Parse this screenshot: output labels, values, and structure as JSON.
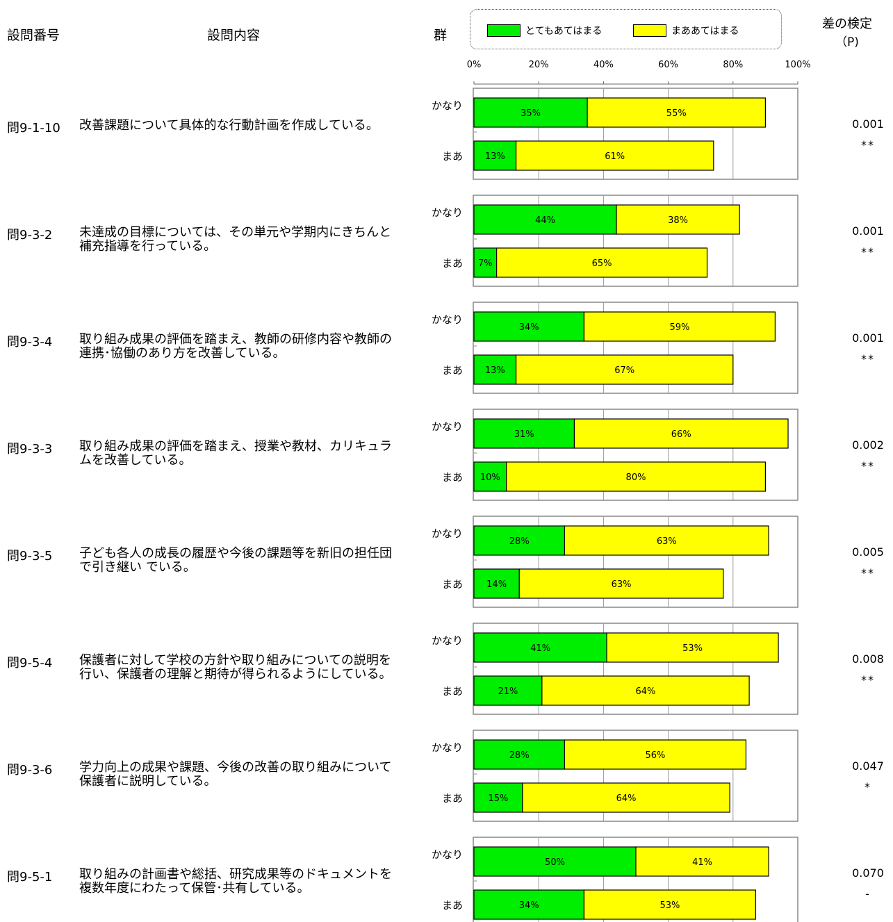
{
  "header": {
    "question_no": "設問番号",
    "question_content": "設問内容",
    "group": "群",
    "test": "差の検定",
    "test_unit": "（P)"
  },
  "legend": [
    {
      "name": "とてもあてはまる",
      "color": "#00ee00"
    },
    {
      "name": "まああてはまる",
      "color": "#ffff00"
    }
  ],
  "colors": {
    "series1": "#00ee00",
    "series2": "#ffff00",
    "grid": "#999999"
  },
  "chart_data": {
    "type": "bar",
    "orientation": "horizontal",
    "stacked": true,
    "xlim": [
      0,
      100
    ],
    "x_ticks": [
      "0%",
      "20%",
      "40%",
      "60%",
      "80%",
      "100%"
    ],
    "groups": [
      "かなり",
      "まあ"
    ],
    "series": [
      {
        "name": "とてもあてはまる",
        "color": "#00ee00"
      },
      {
        "name": "まああてはまる",
        "color": "#ffff00"
      }
    ],
    "questions": [
      {
        "id": "問9-1-10",
        "text": "改善課題について具体的な行動計画を作成している。",
        "p": "0.001",
        "sig": "**",
        "bars": [
          {
            "group": "かなり",
            "values": [
              35,
              55
            ]
          },
          {
            "group": "まあ",
            "values": [
              13,
              61
            ]
          }
        ]
      },
      {
        "id": "問9-3-2",
        "text": "未達成の目標については、その単元や学期内にきちんと補充指導を行っている。",
        "p": "0.001",
        "sig": "**",
        "bars": [
          {
            "group": "かなり",
            "values": [
              44,
              38
            ]
          },
          {
            "group": "まあ",
            "values": [
              7,
              65
            ]
          }
        ]
      },
      {
        "id": "問9-3-4",
        "text": "取り組み成果の評価を踏まえ、教師の研修内容や教師の連携･協働のあり方を改善している。",
        "p": "0.001",
        "sig": "**",
        "bars": [
          {
            "group": "かなり",
            "values": [
              34,
              59
            ]
          },
          {
            "group": "まあ",
            "values": [
              13,
              67
            ]
          }
        ]
      },
      {
        "id": "問9-3-3",
        "text": "取り組み成果の評価を踏まえ、授業や教材、カリキュラムを改善している。",
        "p": "0.002",
        "sig": "**",
        "bars": [
          {
            "group": "かなり",
            "values": [
              31,
              66
            ]
          },
          {
            "group": "まあ",
            "values": [
              10,
              80
            ]
          }
        ]
      },
      {
        "id": "問9-3-5",
        "text": "子ども各人の成長の履歴や今後の課題等を新旧の担任団で引き継い でいる。",
        "p": "0.005",
        "sig": "**",
        "bars": [
          {
            "group": "かなり",
            "values": [
              28,
              63
            ]
          },
          {
            "group": "まあ",
            "values": [
              14,
              63
            ]
          }
        ]
      },
      {
        "id": "問9-5-4",
        "text": "保護者に対して学校の方針や取り組みについての説明を行い、保護者の理解と期待が得られるようにしている。",
        "p": "0.008",
        "sig": "**",
        "bars": [
          {
            "group": "かなり",
            "values": [
              41,
              53
            ]
          },
          {
            "group": "まあ",
            "values": [
              21,
              64
            ]
          }
        ]
      },
      {
        "id": "問9-3-6",
        "text": "学力向上の成果や課題、今後の改善の取り組みについて保護者に説明している。",
        "p": "0.047",
        "sig": "*",
        "bars": [
          {
            "group": "かなり",
            "values": [
              28,
              56
            ]
          },
          {
            "group": "まあ",
            "values": [
              15,
              64
            ]
          }
        ]
      },
      {
        "id": "問9-5-1",
        "text": "取り組みの計画書や総括、研究成果等のドキュメントを複数年度にわたって保管･共有している。",
        "p": "0.070",
        "sig": "-",
        "bars": [
          {
            "group": "かなり",
            "values": [
              50,
              41
            ]
          },
          {
            "group": "まあ",
            "values": [
              34,
              53
            ]
          }
        ]
      }
    ]
  }
}
